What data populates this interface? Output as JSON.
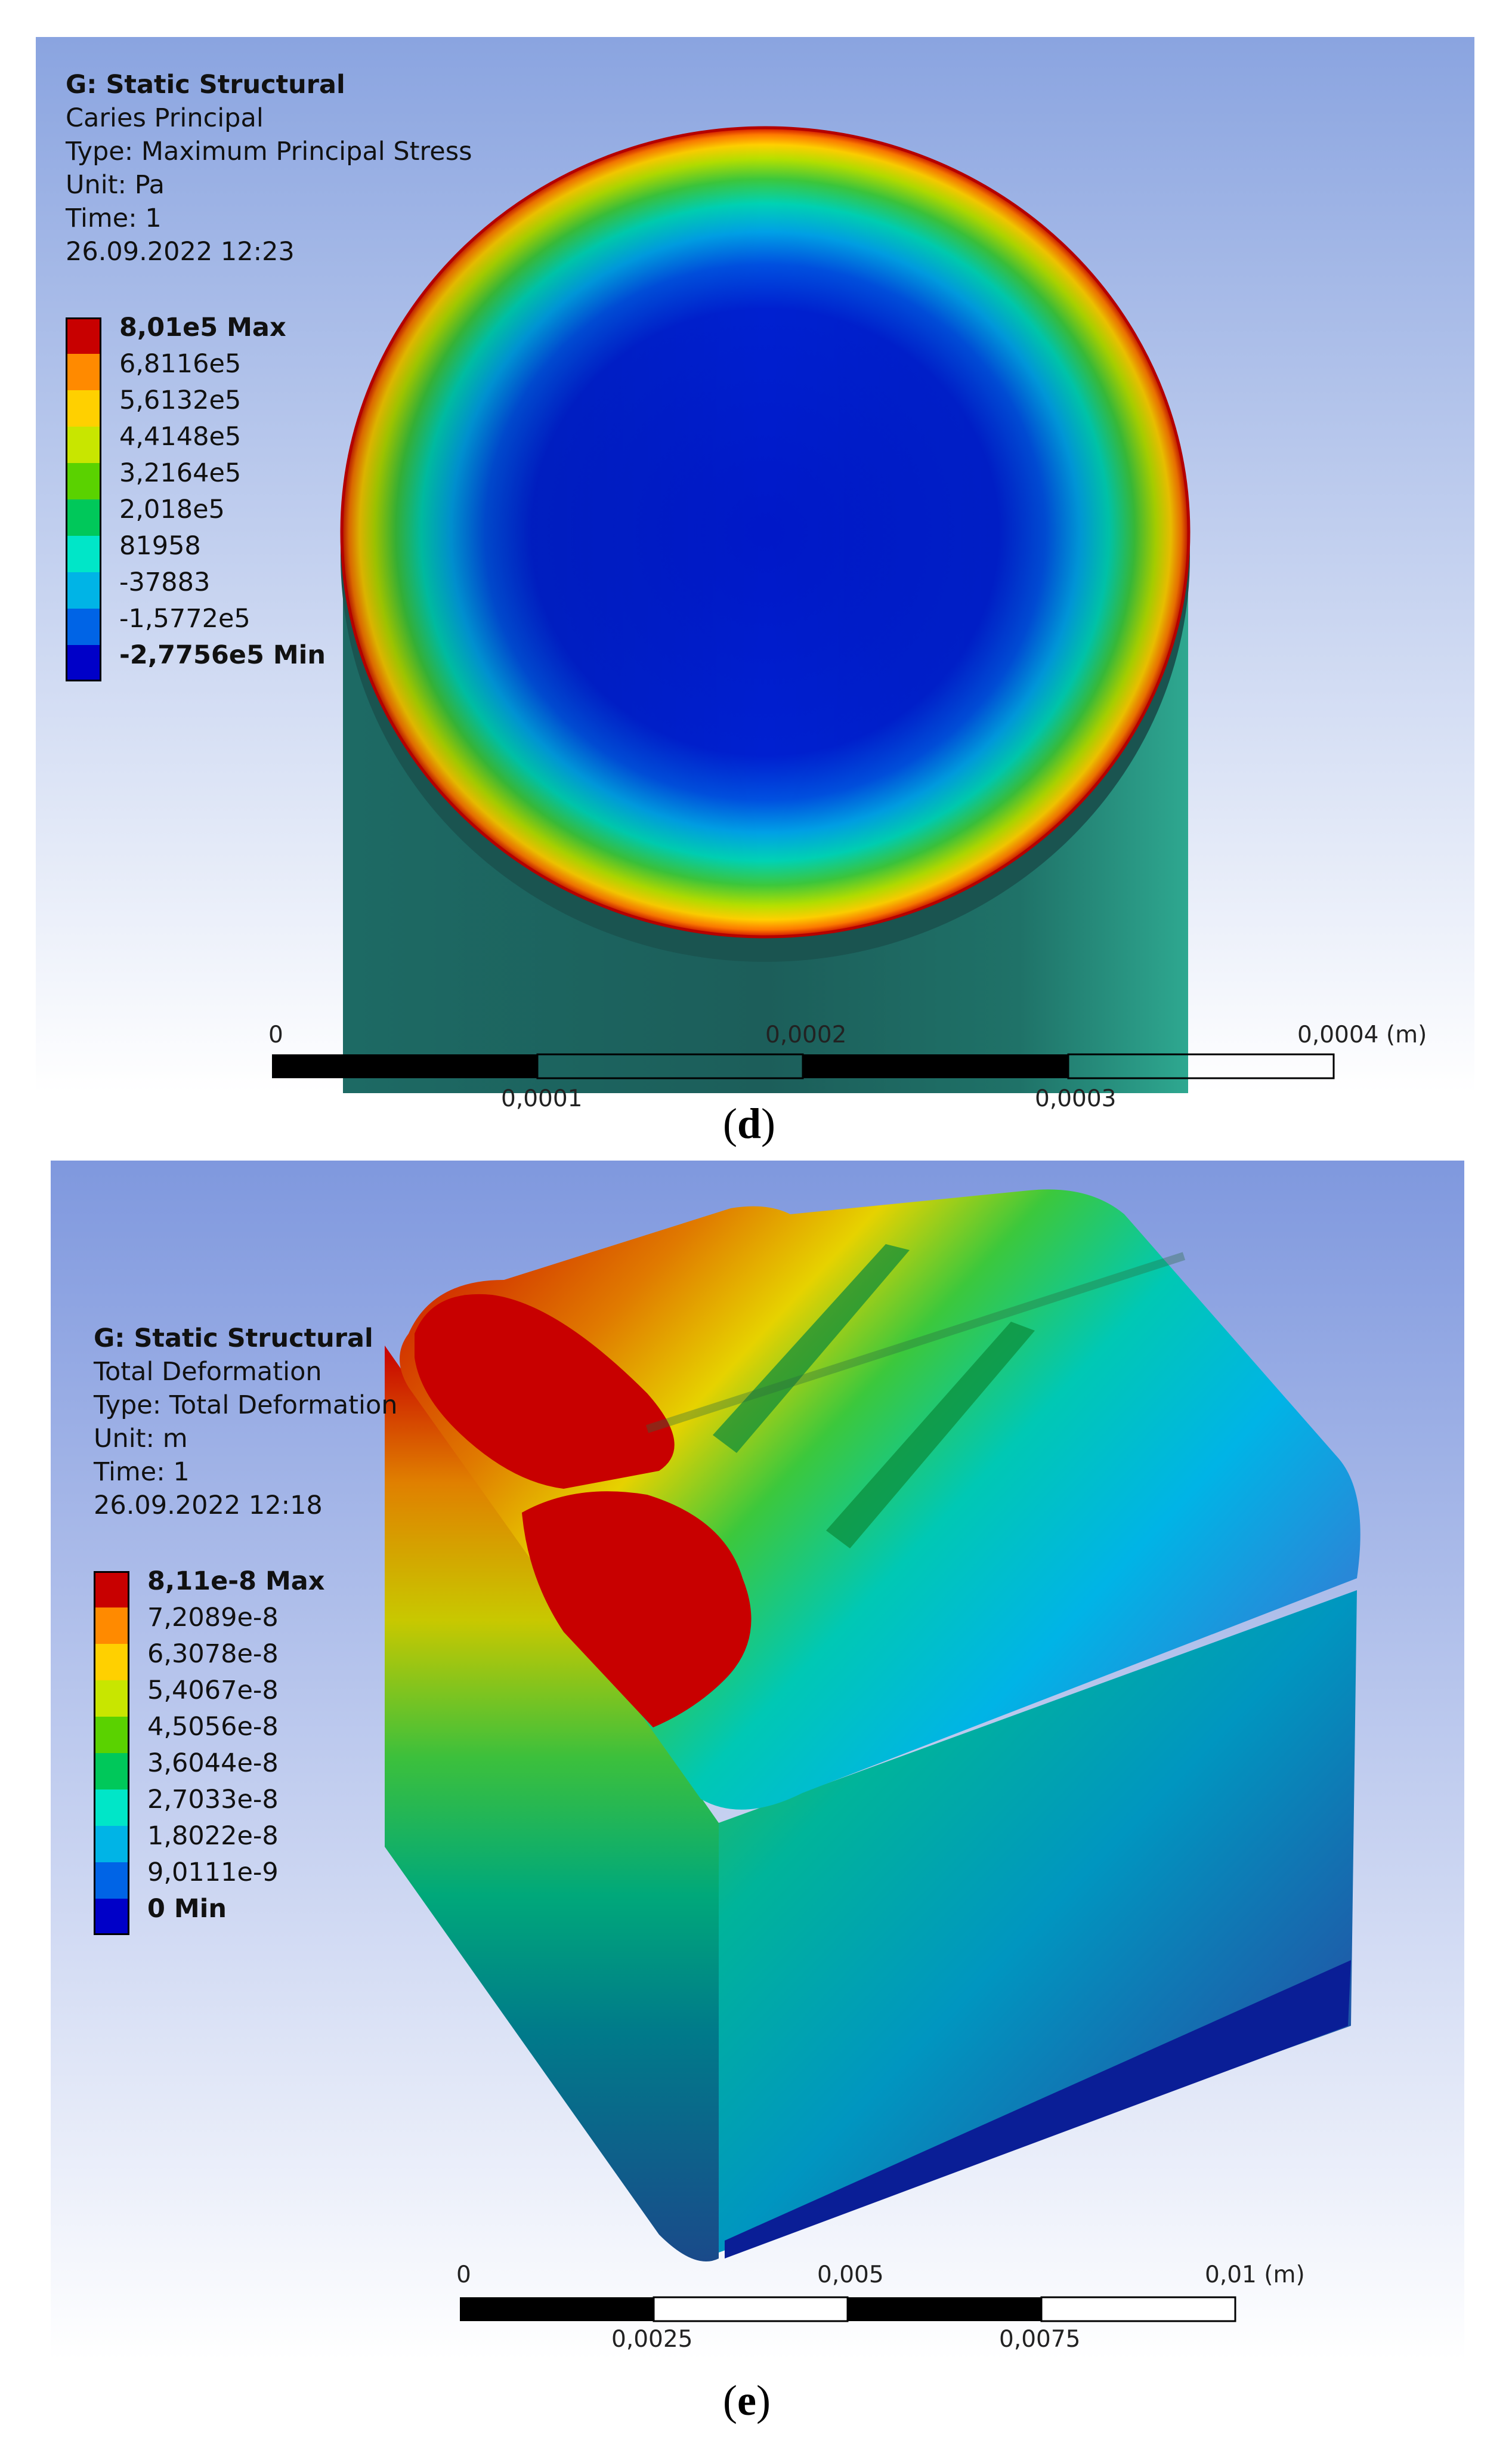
{
  "panel_d": {
    "info": {
      "title": "G: Static Structural",
      "name": "Caries Principal",
      "type": "Type: Maximum Principal Stress",
      "unit": "Unit: Pa",
      "time": "Time: 1",
      "date": "26.09.2022 12:23"
    },
    "legend": [
      {
        "label": "8,01e5 Max",
        "color": "#c80000",
        "bold": true
      },
      {
        "label": "6,8116e5",
        "color": "#ff8a00",
        "bold": false
      },
      {
        "label": "5,6132e5",
        "color": "#ffd000",
        "bold": false
      },
      {
        "label": "4,4148e5",
        "color": "#c8e600",
        "bold": false
      },
      {
        "label": "3,2164e5",
        "color": "#5ad200",
        "bold": false
      },
      {
        "label": "2,018e5",
        "color": "#00c85a",
        "bold": false
      },
      {
        "label": "81958",
        "color": "#00e6c8",
        "bold": false
      },
      {
        "label": "-37883",
        "color": "#00b4e6",
        "bold": false
      },
      {
        "label": "-1,5772e5",
        "color": "#0064e6",
        "bold": false
      },
      {
        "label": "-2,7756e5 Min",
        "color": "#0000c8",
        "bold": true
      }
    ],
    "scale": {
      "top_labels": [
        "0",
        "0,0002",
        "0,0004 (m)"
      ],
      "bottom_labels": [
        "0,0001",
        "0,0003"
      ]
    },
    "caption_letter": "d"
  },
  "panel_e": {
    "info": {
      "title": "G: Static Structural",
      "name": "Total Deformation",
      "type": "Type: Total Deformation",
      "unit": "Unit: m",
      "time": "Time: 1",
      "date": "26.09.2022 12:18"
    },
    "legend": [
      {
        "label": "8,11e-8 Max",
        "color": "#c80000",
        "bold": true
      },
      {
        "label": "7,2089e-8",
        "color": "#ff8a00",
        "bold": false
      },
      {
        "label": "6,3078e-8",
        "color": "#ffd000",
        "bold": false
      },
      {
        "label": "5,4067e-8",
        "color": "#c8e600",
        "bold": false
      },
      {
        "label": "4,5056e-8",
        "color": "#5ad200",
        "bold": false
      },
      {
        "label": "3,6044e-8",
        "color": "#00c85a",
        "bold": false
      },
      {
        "label": "2,7033e-8",
        "color": "#00e6c8",
        "bold": false
      },
      {
        "label": "1,8022e-8",
        "color": "#00b4e6",
        "bold": false
      },
      {
        "label": "9,0111e-9",
        "color": "#0064e6",
        "bold": false
      },
      {
        "label": "0 Min",
        "color": "#0000c8",
        "bold": true
      }
    ],
    "scale": {
      "top_labels": [
        "0",
        "0,005",
        "0,01 (m)"
      ],
      "bottom_labels": [
        "0,0025",
        "0,0075"
      ]
    },
    "caption_letter": "e"
  }
}
